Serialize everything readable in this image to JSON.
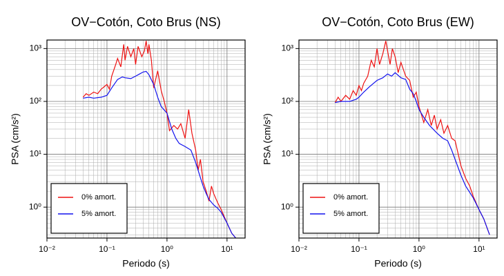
{
  "chart_data": [
    {
      "type": "line",
      "title": "OV−Cotón, Coto Brus (NS)",
      "xlabel": "Periodo (s)",
      "ylabel": "PSA (cm/s²)",
      "xscale": "log",
      "yscale": "log",
      "grid": true,
      "minor_grid": true,
      "legend": "lower left",
      "xlim": [
        0.01,
        20
      ],
      "ylim": [
        0.26,
        1450
      ],
      "xticks": [
        {
          "value": 0.01,
          "label": "10⁻²"
        },
        {
          "value": 0.1,
          "label": "10⁻¹"
        },
        {
          "value": 1,
          "label": "10⁰"
        },
        {
          "value": 10,
          "label": "10¹"
        }
      ],
      "yticks": [
        {
          "value": 1,
          "label": "10⁰"
        },
        {
          "value": 10,
          "label": "10¹"
        },
        {
          "value": 100,
          "label": "10²"
        },
        {
          "value": 1000,
          "label": "10³"
        }
      ],
      "series": [
        {
          "name": "0% amort.",
          "color": "#ee1111",
          "x": [
            0.04,
            0.045,
            0.05,
            0.06,
            0.07,
            0.08,
            0.09,
            0.1,
            0.11,
            0.12,
            0.14,
            0.15,
            0.17,
            0.19,
            0.2,
            0.22,
            0.25,
            0.28,
            0.3,
            0.33,
            0.38,
            0.42,
            0.45,
            0.48,
            0.5,
            0.55,
            0.6,
            0.7,
            0.8,
            0.9,
            1.0,
            1.1,
            1.3,
            1.5,
            1.7,
            2.0,
            2.3,
            2.6,
            3.0,
            3.3,
            3.6,
            4.0,
            4.5,
            5.0,
            5.5,
            6,
            7,
            8,
            10,
            12,
            14
          ],
          "values": [
            120,
            140,
            130,
            150,
            140,
            170,
            190,
            210,
            170,
            300,
            500,
            650,
            450,
            1200,
            600,
            1100,
            700,
            1000,
            500,
            1100,
            700,
            900,
            1400,
            800,
            1200,
            600,
            180,
            380,
            160,
            100,
            60,
            28,
            35,
            30,
            38,
            20,
            70,
            25,
            12,
            5,
            8,
            3,
            2,
            1.3,
            2.5,
            1.8,
            1.2,
            0.9,
            0.5,
            0.32,
            0.26
          ]
        },
        {
          "name": "5% amort.",
          "color": "#1111ee",
          "x": [
            0.04,
            0.05,
            0.06,
            0.08,
            0.1,
            0.12,
            0.15,
            0.18,
            0.2,
            0.25,
            0.3,
            0.35,
            0.4,
            0.45,
            0.5,
            0.6,
            0.7,
            0.8,
            1.0,
            1.2,
            1.4,
            1.6,
            2.0,
            2.5,
            3.0,
            3.5,
            4.0,
            4.5,
            5,
            6,
            7,
            8,
            10,
            12,
            14
          ],
          "values": [
            115,
            120,
            115,
            120,
            130,
            180,
            260,
            290,
            280,
            270,
            300,
            330,
            360,
            370,
            320,
            210,
            120,
            80,
            60,
            30,
            20,
            16,
            14,
            12,
            7,
            4,
            2.5,
            1.8,
            1.4,
            1.1,
            0.95,
            0.8,
            0.5,
            0.32,
            0.26
          ]
        }
      ]
    },
    {
      "type": "line",
      "title": "OV−Cotón, Coto Brus (EW)",
      "xlabel": "Periodo (s)",
      "ylabel": "PSA (cm/s²)",
      "xscale": "log",
      "yscale": "log",
      "grid": true,
      "minor_grid": true,
      "legend": "lower left",
      "xlim": [
        0.01,
        20
      ],
      "ylim": [
        0.26,
        1450
      ],
      "xticks": [
        {
          "value": 0.01,
          "label": "10⁻²"
        },
        {
          "value": 0.1,
          "label": "10⁻¹"
        },
        {
          "value": 1,
          "label": "10⁰"
        },
        {
          "value": 10,
          "label": "10¹"
        }
      ],
      "yticks": [
        {
          "value": 1,
          "label": "10⁰"
        },
        {
          "value": 10,
          "label": "10¹"
        },
        {
          "value": 100,
          "label": "10²"
        },
        {
          "value": 1000,
          "label": "10³"
        }
      ],
      "series": [
        {
          "name": "0% amort.",
          "color": "#ee1111",
          "x": [
            0.04,
            0.045,
            0.05,
            0.06,
            0.07,
            0.08,
            0.09,
            0.1,
            0.11,
            0.12,
            0.14,
            0.16,
            0.18,
            0.2,
            0.22,
            0.25,
            0.28,
            0.3,
            0.33,
            0.36,
            0.4,
            0.45,
            0.5,
            0.55,
            0.6,
            0.7,
            0.8,
            0.9,
            1.0,
            1.2,
            1.4,
            1.6,
            1.8,
            2.0,
            2.3,
            2.6,
            3.0,
            3.5,
            4.0,
            5.0,
            6,
            7,
            8,
            10,
            12,
            15
          ],
          "values": [
            95,
            120,
            100,
            130,
            110,
            160,
            130,
            200,
            160,
            220,
            300,
            600,
            450,
            1000,
            500,
            800,
            1400,
            900,
            500,
            1000,
            700,
            350,
            550,
            400,
            300,
            250,
            120,
            150,
            80,
            40,
            70,
            35,
            55,
            30,
            45,
            25,
            35,
            20,
            18,
            6,
            3.5,
            2.5,
            1.6,
            0.9,
            0.6,
            0.3
          ]
        },
        {
          "name": "5% amort.",
          "color": "#1111ee",
          "x": [
            0.04,
            0.05,
            0.07,
            0.09,
            0.1,
            0.12,
            0.15,
            0.2,
            0.25,
            0.3,
            0.35,
            0.4,
            0.5,
            0.6,
            0.7,
            0.8,
            0.9,
            1.0,
            1.2,
            1.5,
            2.0,
            2.5,
            3.0,
            3.5,
            4.0,
            5,
            6,
            8,
            10,
            12,
            15
          ],
          "values": [
            95,
            100,
            100,
            110,
            120,
            150,
            190,
            250,
            280,
            330,
            300,
            350,
            280,
            260,
            170,
            140,
            100,
            70,
            50,
            35,
            25,
            20,
            18,
            12,
            8,
            4,
            2.5,
            1.5,
            0.9,
            0.6,
            0.3
          ]
        }
      ]
    }
  ]
}
